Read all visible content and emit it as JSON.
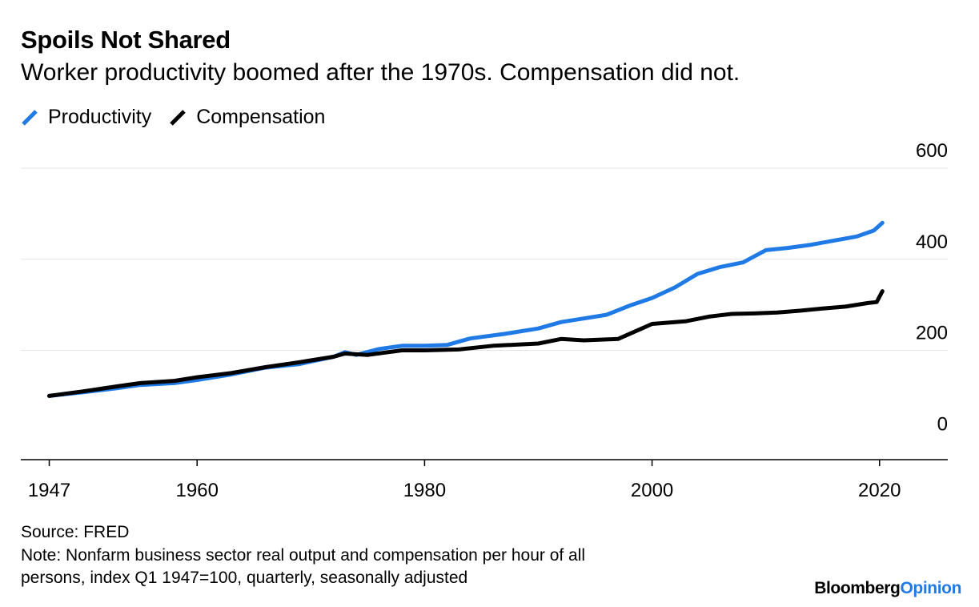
{
  "header": {
    "title": "Spoils Not Shared",
    "subtitle": "Worker productivity boomed after the 1970s. Compensation did not."
  },
  "legend": [
    {
      "label": "Productivity",
      "color": "#1f7ae6"
    },
    {
      "label": "Compensation",
      "color": "#000000"
    }
  ],
  "footer": {
    "source": "Source: FRED",
    "note_line1": "Note: Nonfarm business sector real output and compensation per hour of all",
    "note_line2": "persons, index Q1 1947=100, quarterly, seasonally adjusted"
  },
  "branding": {
    "part1": "Bloomberg",
    "part2": "Opinion"
  },
  "colors": {
    "productivity": "#1f7ae6",
    "compensation": "#000000",
    "grid": "#e6e6e6",
    "axis": "#000000"
  },
  "chart_data": {
    "type": "line",
    "x_ticks": [
      "1947",
      "1960",
      "1980",
      "2000",
      "2020"
    ],
    "y_ticks": [
      "0",
      "200",
      "400",
      "600"
    ],
    "xlim": [
      1944.5,
      2026
    ],
    "ylim": [
      -40,
      600
    ],
    "grid": true,
    "legend_position": "top-left",
    "series": [
      {
        "name": "Productivity",
        "color": "#1f7ae6",
        "points": [
          [
            1947,
            100
          ],
          [
            1950,
            108
          ],
          [
            1953,
            117
          ],
          [
            1955,
            124
          ],
          [
            1958,
            128
          ],
          [
            1960,
            135
          ],
          [
            1963,
            147
          ],
          [
            1966,
            162
          ],
          [
            1969,
            170
          ],
          [
            1972,
            186
          ],
          [
            1973,
            196
          ],
          [
            1974,
            190
          ],
          [
            1976,
            203
          ],
          [
            1978,
            210
          ],
          [
            1980,
            210
          ],
          [
            1982,
            212
          ],
          [
            1984,
            226
          ],
          [
            1987,
            236
          ],
          [
            1990,
            248
          ],
          [
            1992,
            262
          ],
          [
            1994,
            270
          ],
          [
            1996,
            278
          ],
          [
            1998,
            298
          ],
          [
            2000,
            315
          ],
          [
            2002,
            338
          ],
          [
            2004,
            368
          ],
          [
            2006,
            383
          ],
          [
            2008,
            393
          ],
          [
            2010,
            420
          ],
          [
            2012,
            425
          ],
          [
            2014,
            432
          ],
          [
            2016,
            441
          ],
          [
            2018,
            450
          ],
          [
            2019.5,
            463
          ],
          [
            2020.25,
            480
          ]
        ]
      },
      {
        "name": "Compensation",
        "color": "#000000",
        "points": [
          [
            1947,
            100
          ],
          [
            1950,
            110
          ],
          [
            1953,
            121
          ],
          [
            1955,
            128
          ],
          [
            1958,
            133
          ],
          [
            1960,
            141
          ],
          [
            1963,
            150
          ],
          [
            1966,
            163
          ],
          [
            1969,
            174
          ],
          [
            1972,
            186
          ],
          [
            1973,
            193
          ],
          [
            1975,
            190
          ],
          [
            1978,
            200
          ],
          [
            1980,
            200
          ],
          [
            1983,
            202
          ],
          [
            1986,
            210
          ],
          [
            1990,
            215
          ],
          [
            1992,
            225
          ],
          [
            1994,
            222
          ],
          [
            1997,
            225
          ],
          [
            1999,
            247
          ],
          [
            2000,
            258
          ],
          [
            2003,
            264
          ],
          [
            2005,
            274
          ],
          [
            2007,
            280
          ],
          [
            2009,
            281
          ],
          [
            2011,
            283
          ],
          [
            2013,
            287
          ],
          [
            2015,
            292
          ],
          [
            2017,
            296
          ],
          [
            2019,
            304
          ],
          [
            2019.75,
            306
          ],
          [
            2020.25,
            330
          ]
        ]
      }
    ]
  }
}
